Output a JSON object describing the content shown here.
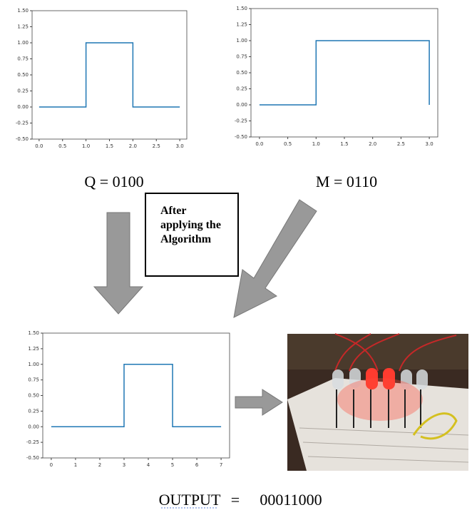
{
  "chart_data": [
    {
      "type": "line",
      "x": [
        0,
        1,
        1,
        2,
        2,
        3
      ],
      "values": [
        0,
        0,
        1,
        1,
        0,
        0
      ],
      "color": "#1f77b4",
      "xlim": [
        -0.15,
        3.15
      ],
      "ylim": [
        -0.5,
        1.5
      ],
      "xticks": [
        {
          "value": 0,
          "label": "0.0"
        },
        {
          "value": 0.5,
          "label": "0.5"
        },
        {
          "value": 1,
          "label": "1.0"
        },
        {
          "value": 1.5,
          "label": "1.5"
        },
        {
          "value": 2,
          "label": "2.0"
        },
        {
          "value": 2.5,
          "label": "2.5"
        },
        {
          "value": 3,
          "label": "3.0"
        }
      ],
      "yticks": [
        {
          "value": -0.5,
          "label": "-0.50"
        },
        {
          "value": -0.25,
          "label": "-0.25"
        },
        {
          "value": 0,
          "label": "0.00"
        },
        {
          "value": 0.25,
          "label": "0.25"
        },
        {
          "value": 0.5,
          "label": "0.50"
        },
        {
          "value": 0.75,
          "label": "0.75"
        },
        {
          "value": 1,
          "label": "1.00"
        },
        {
          "value": 1.25,
          "label": "1.25"
        },
        {
          "value": 1.5,
          "label": "1.50"
        }
      ]
    },
    {
      "type": "line",
      "x": [
        0,
        1,
        1,
        3,
        3
      ],
      "values": [
        0,
        0,
        1,
        1,
        0
      ],
      "color": "#1f77b4",
      "xlim": [
        -0.15,
        3.15
      ],
      "ylim": [
        -0.5,
        1.5
      ],
      "xticks": [
        {
          "value": 0,
          "label": "0.0"
        },
        {
          "value": 0.5,
          "label": "0.5"
        },
        {
          "value": 1,
          "label": "1.0"
        },
        {
          "value": 1.5,
          "label": "1.5"
        },
        {
          "value": 2,
          "label": "2.0"
        },
        {
          "value": 2.5,
          "label": "2.5"
        },
        {
          "value": 3,
          "label": "3.0"
        }
      ],
      "yticks": [
        {
          "value": -0.5,
          "label": "-0.50"
        },
        {
          "value": -0.25,
          "label": "-0.25"
        },
        {
          "value": 0,
          "label": "0.00"
        },
        {
          "value": 0.25,
          "label": "0.25"
        },
        {
          "value": 0.5,
          "label": "0.50"
        },
        {
          "value": 0.75,
          "label": "0.75"
        },
        {
          "value": 1,
          "label": "1.00"
        },
        {
          "value": 1.25,
          "label": "1.25"
        },
        {
          "value": 1.5,
          "label": "1.50"
        }
      ]
    },
    {
      "type": "line",
      "x": [
        0,
        3,
        3,
        5,
        5,
        7
      ],
      "values": [
        0,
        0,
        1,
        1,
        0,
        0
      ],
      "color": "#1f77b4",
      "xlim": [
        -0.35,
        7.35
      ],
      "ylim": [
        -0.5,
        1.5
      ],
      "xticks": [
        0,
        1,
        2,
        3,
        4,
        5,
        6,
        7
      ],
      "yticks": [
        {
          "value": -0.5,
          "label": "-0.50"
        },
        {
          "value": -0.25,
          "label": "-0.25"
        },
        {
          "value": 0,
          "label": "0.00"
        },
        {
          "value": 0.25,
          "label": "0.25"
        },
        {
          "value": 0.5,
          "label": "0.50"
        },
        {
          "value": 0.75,
          "label": "0.75"
        },
        {
          "value": 1,
          "label": "1.00"
        },
        {
          "value": 1.25,
          "label": "1.25"
        },
        {
          "value": 1.5,
          "label": "1.50"
        }
      ]
    }
  ],
  "labels": {
    "q": "Q = 0100",
    "m": "M = 0110",
    "algorithm": "After applying the Algorithm",
    "output_label": "OUTPUT",
    "output_sep": "=",
    "output_value": "00011000"
  }
}
